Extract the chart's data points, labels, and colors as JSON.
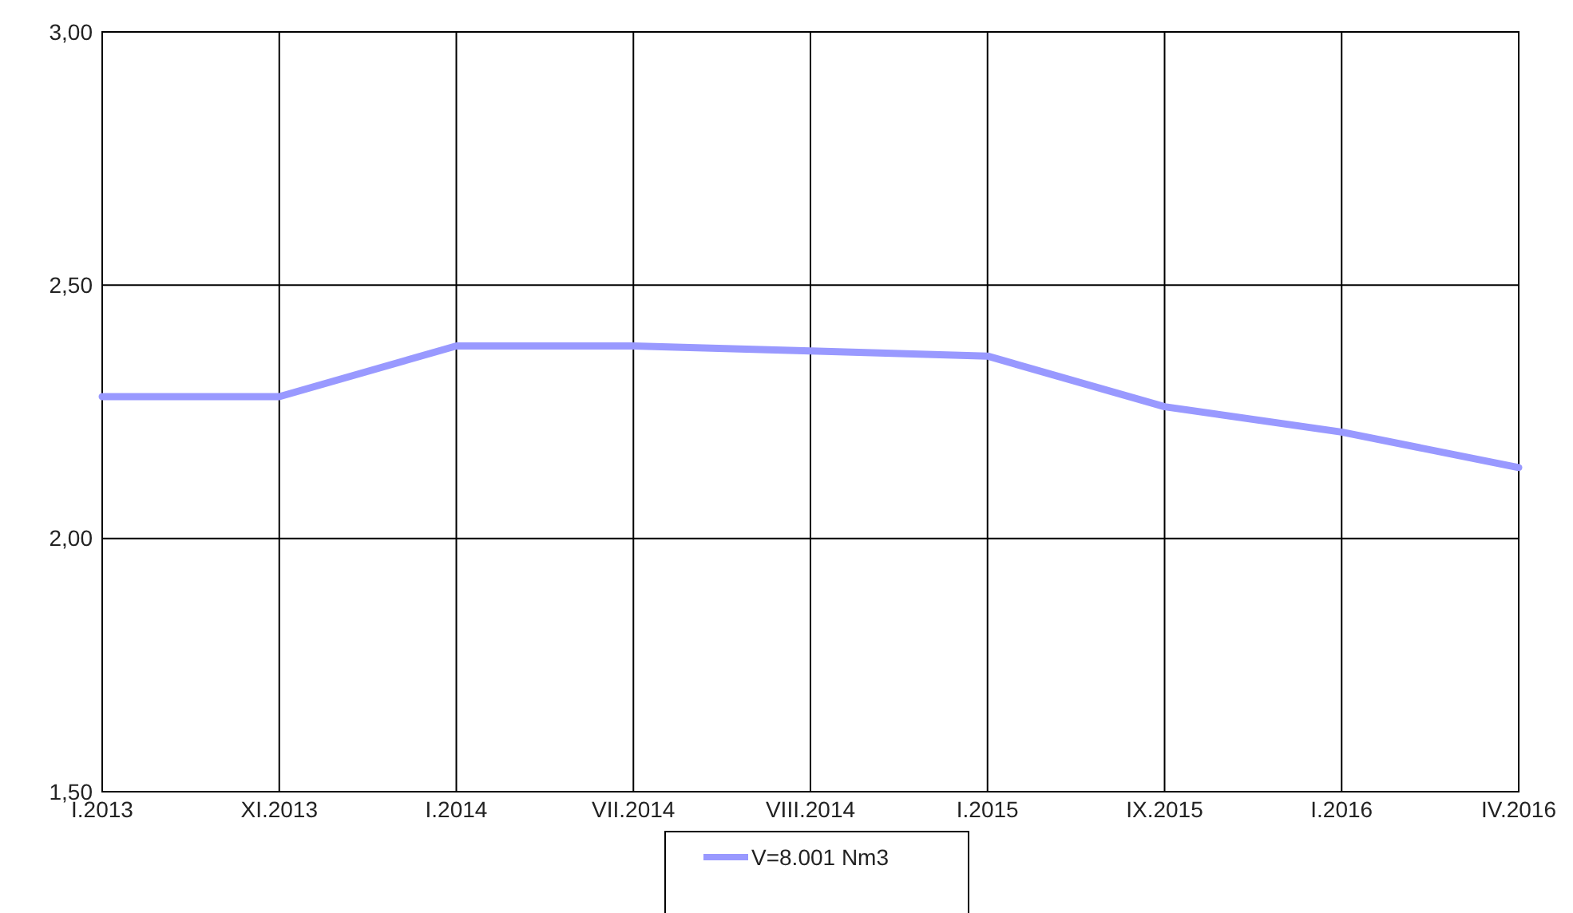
{
  "chart_data": {
    "type": "line",
    "categories": [
      "I.2013",
      "XI.2013",
      "I.2014",
      "VII.2014",
      "VIII.2014",
      "I.2015",
      "IX.2015",
      "I.2016",
      "IV.2016"
    ],
    "series": [
      {
        "name": "V=8.001 Nm3",
        "color": "#9999ff",
        "values": [
          2.28,
          2.28,
          2.38,
          2.38,
          2.37,
          2.36,
          2.26,
          2.21,
          2.14
        ]
      }
    ],
    "ylim": [
      1.5,
      3
    ],
    "yticks": [
      {
        "value": 1.5,
        "label": "1,50"
      },
      {
        "value": 2,
        "label": "2,00"
      },
      {
        "value": 2.5,
        "label": "2,50"
      },
      {
        "value": 3,
        "label": "3,00"
      }
    ],
    "grid": true,
    "legend": "bottom",
    "marker": "none",
    "line_style": "solid"
  }
}
